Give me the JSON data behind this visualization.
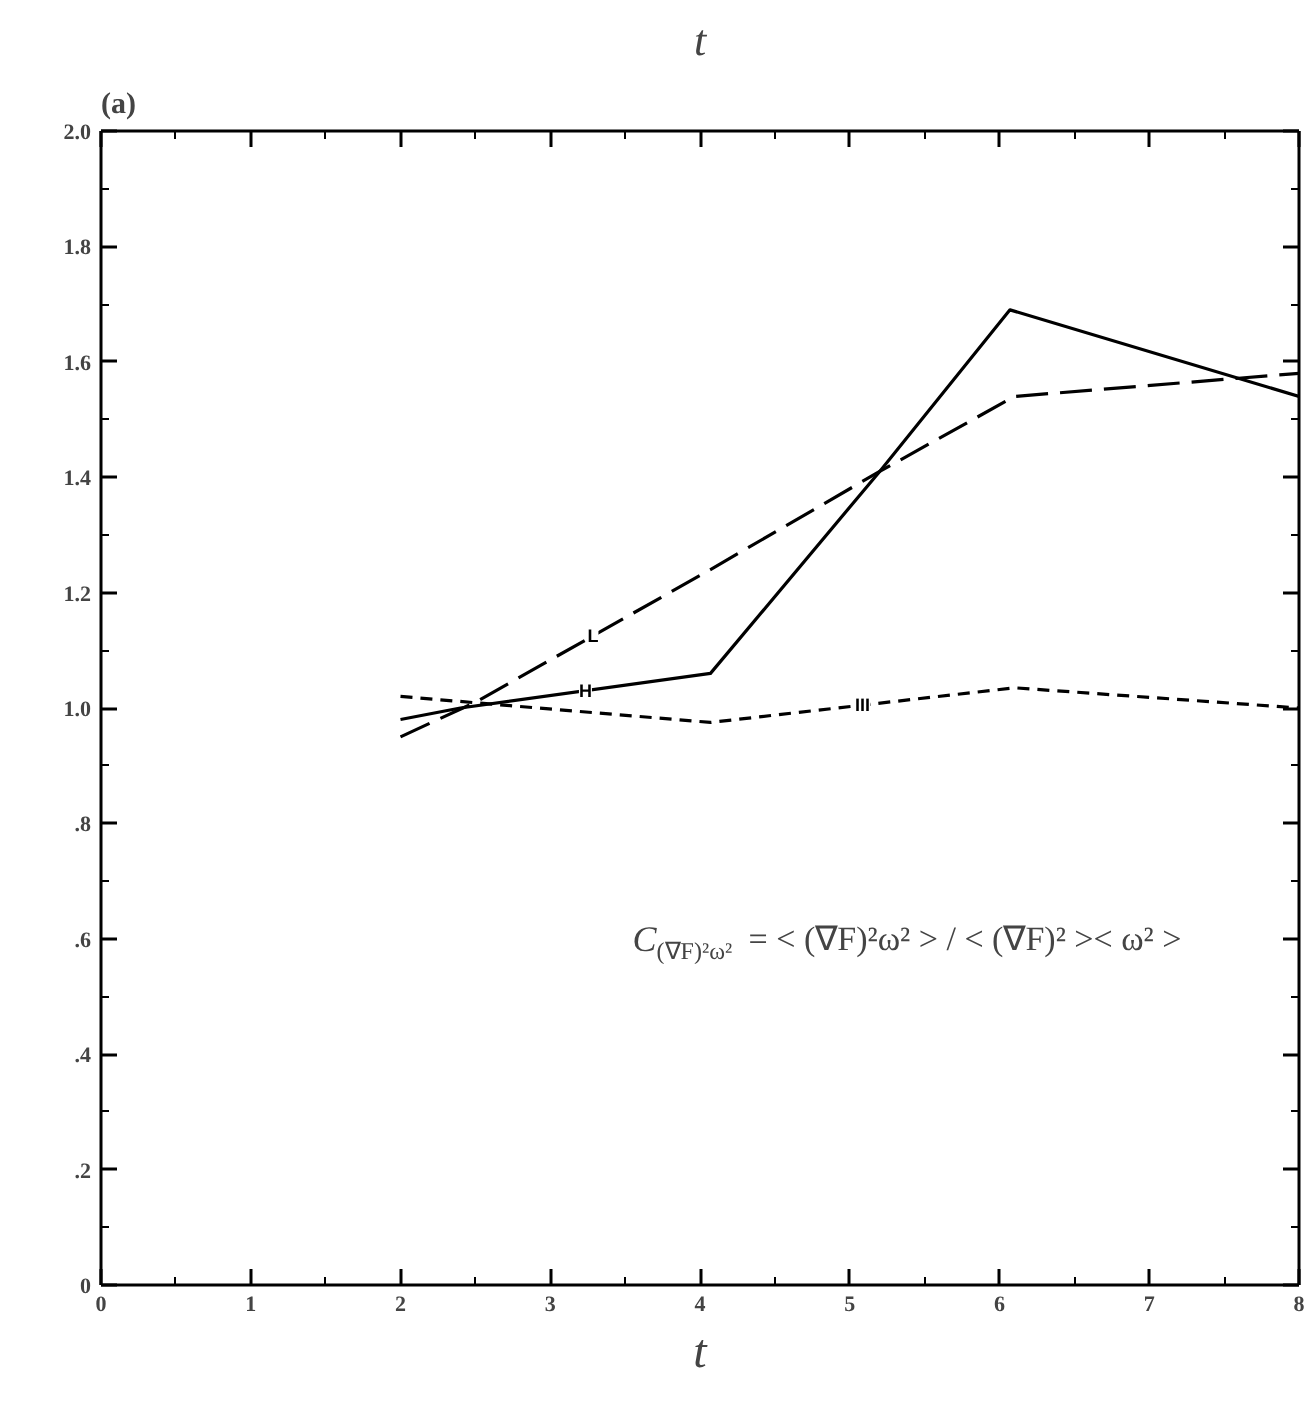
{
  "chart_data": {
    "type": "line",
    "title": "t",
    "xlabel": "t",
    "annotations": [
      "(a)",
      "C$_{(∇F)²ω²}$ = < (∇F)²ω² > / < (∇F)² >< ω² >"
    ],
    "xlim": [
      0,
      8
    ],
    "ylim": [
      0,
      2.0
    ],
    "xticks": [
      0,
      1,
      2,
      3,
      4,
      5,
      6,
      7,
      8
    ],
    "yticks": [
      {
        "value": 0,
        "label": "0"
      },
      {
        "value": 0.2,
        "label": ".2"
      },
      {
        "value": 0.4,
        "label": ".4"
      },
      {
        "value": 0.6,
        "label": ".6"
      },
      {
        "value": 0.8,
        "label": ".8"
      },
      {
        "value": 1.0,
        "label": "1.0"
      },
      {
        "value": 1.2,
        "label": "1.2"
      },
      {
        "value": 1.4,
        "label": "1.4"
      },
      {
        "value": 1.6,
        "label": "1.6"
      },
      {
        "value": 1.8,
        "label": "1.8"
      },
      {
        "value": 2.0,
        "label": "2.0"
      }
    ],
    "grid": false,
    "marker": "none",
    "series": [
      {
        "name": "H",
        "color": "#000000",
        "line_style": "solid",
        "x": [
          2,
          2.4,
          4.07,
          5.2,
          6.07,
          8
        ],
        "values": [
          0.98,
          1.0,
          1.06,
          1.41,
          1.69,
          1.54
        ]
      },
      {
        "name": "L",
        "color": "#000000",
        "line_style": "dashed",
        "x": [
          2,
          2.5,
          4.07,
          5.2,
          6.1,
          8
        ],
        "values": [
          0.95,
          1.01,
          1.24,
          1.41,
          1.54,
          1.58
        ]
      },
      {
        "name": "III",
        "color": "#000000",
        "line_style": "dotted",
        "x": [
          2,
          4.07,
          6.1,
          8
        ],
        "values": [
          1.02,
          0.975,
          1.035,
          1.0
        ]
      }
    ]
  }
}
